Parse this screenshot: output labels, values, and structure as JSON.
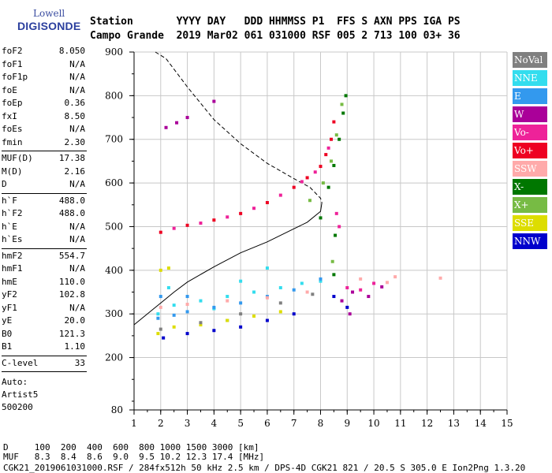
{
  "logo": {
    "line1": "Lowell",
    "line2": "DIGISONDE"
  },
  "header": {
    "row1": "Station       YYYY DAY   DDD HHMMSS P1  FFS S AXN PPS IGA PS",
    "row2": "Campo Grande  2019 Mar02 061 031000 RSF 005 2 713 100 03+ 36"
  },
  "params": {
    "group1": [
      {
        "name": "foF2",
        "value": "8.050"
      },
      {
        "name": "foF1",
        "value": "N/A"
      },
      {
        "name": "foF1p",
        "value": "N/A"
      },
      {
        "name": "foE",
        "value": "N/A"
      },
      {
        "name": "foEp",
        "value": "0.36"
      },
      {
        "name": "fxI",
        "value": "8.50"
      },
      {
        "name": "foEs",
        "value": "N/A"
      },
      {
        "name": "fmin",
        "value": "2.30"
      }
    ],
    "group2": [
      {
        "name": "MUF(D)",
        "value": "17.38"
      },
      {
        "name": "M(D)",
        "value": "2.16"
      },
      {
        "name": "D",
        "value": "N/A"
      }
    ],
    "group3": [
      {
        "name": "h`F",
        "value": "488.0"
      },
      {
        "name": "h`F2",
        "value": "488.0"
      },
      {
        "name": "h`E",
        "value": "N/A"
      },
      {
        "name": "h`Es",
        "value": "N/A"
      }
    ],
    "group4": [
      {
        "name": "hmF2",
        "value": "554.7"
      },
      {
        "name": "hmF1",
        "value": "N/A"
      },
      {
        "name": "hmE",
        "value": "110.0"
      },
      {
        "name": "yF2",
        "value": "102.8"
      },
      {
        "name": "yF1",
        "value": "N/A"
      },
      {
        "name": "yE",
        "value": "20.0"
      },
      {
        "name": "B0",
        "value": "121.3"
      },
      {
        "name": "B1",
        "value": "1.10"
      }
    ],
    "clevel": {
      "name": "C-level",
      "value": "33"
    },
    "auto": [
      "Auto:",
      "Artist5",
      "500200"
    ]
  },
  "legend": [
    {
      "label": "NoVal",
      "color": "#808080"
    },
    {
      "label": "NNE",
      "color": "#33ddee"
    },
    {
      "label": "E",
      "color": "#3399ee"
    },
    {
      "label": "W",
      "color": "#aa0099"
    },
    {
      "label": "Vo-",
      "color": "#ee2299"
    },
    {
      "label": "Vo+",
      "color": "#ee0022"
    },
    {
      "label": "SSW",
      "color": "#ffaaaa"
    },
    {
      "label": "X-",
      "color": "#007700"
    },
    {
      "label": "X+",
      "color": "#77bb44"
    },
    {
      "label": "SSE",
      "color": "#dddd00"
    },
    {
      "label": "NNW",
      "color": "#0000cc"
    }
  ],
  "footer": {
    "line1": "D     100  200  400  600  800 1000 1500 3000 [km]",
    "line2": "MUF   8.3  8.4  8.6  9.0  9.5 10.2 12.3 17.4 [MHz]",
    "line3": "CGK21_2019061031000.RSF / 284fx512h 50 kHz 2.5 km / DPS-4D CGK21 821 / 20.5 S 305.0 E Ion2Png 1.3.20"
  },
  "chart_data": {
    "type": "scatter",
    "title": "",
    "xlabel": "",
    "ylabel": "",
    "xlim": [
      1,
      15
    ],
    "ylim": [
      80,
      900
    ],
    "x_ticks": [
      1,
      2,
      3,
      4,
      5,
      6,
      7,
      8,
      9,
      10,
      11,
      12,
      13,
      14,
      15
    ],
    "y_ticks": [
      80,
      200,
      300,
      400,
      500,
      600,
      700,
      800,
      900
    ],
    "grid": true,
    "series": [
      {
        "name": "X-",
        "color": "#007700",
        "points": [
          [
            8.0,
            520
          ],
          [
            8.3,
            590
          ],
          [
            8.5,
            640
          ],
          [
            8.7,
            700
          ],
          [
            8.85,
            760
          ],
          [
            8.95,
            800
          ],
          [
            8.5,
            390
          ],
          [
            8.55,
            480
          ]
        ]
      },
      {
        "name": "X+",
        "color": "#77bb44",
        "points": [
          [
            7.6,
            560
          ],
          [
            8.1,
            600
          ],
          [
            8.4,
            650
          ],
          [
            8.6,
            710
          ],
          [
            8.8,
            780
          ],
          [
            8.45,
            420
          ]
        ]
      },
      {
        "name": "Vo+",
        "color": "#ee0022",
        "points": [
          [
            2.0,
            487
          ],
          [
            3.0,
            503
          ],
          [
            4.0,
            515
          ],
          [
            5.0,
            530
          ],
          [
            6.0,
            555
          ],
          [
            7.0,
            590
          ],
          [
            7.5,
            612
          ],
          [
            8.0,
            638
          ],
          [
            8.2,
            665
          ],
          [
            8.4,
            700
          ],
          [
            8.5,
            740
          ]
        ]
      },
      {
        "name": "Vo-",
        "color": "#ee2299",
        "points": [
          [
            2.5,
            496
          ],
          [
            3.5,
            508
          ],
          [
            4.5,
            522
          ],
          [
            5.5,
            542
          ],
          [
            6.5,
            572
          ],
          [
            7.3,
            603
          ],
          [
            7.8,
            625
          ],
          [
            8.3,
            680
          ],
          [
            8.6,
            530
          ],
          [
            8.7,
            500
          ],
          [
            9.0,
            360
          ],
          [
            9.5,
            355
          ],
          [
            10.0,
            370
          ]
        ]
      },
      {
        "name": "W",
        "color": "#aa0099",
        "points": [
          [
            2.2,
            727
          ],
          [
            2.6,
            738
          ],
          [
            3.0,
            750
          ],
          [
            4.0,
            787
          ],
          [
            8.8,
            330
          ],
          [
            9.2,
            350
          ],
          [
            9.8,
            340
          ],
          [
            10.3,
            362
          ],
          [
            9.1,
            300
          ]
        ]
      },
      {
        "name": "NNE",
        "color": "#33ddee",
        "points": [
          [
            1.9,
            300
          ],
          [
            2.5,
            320
          ],
          [
            3.5,
            330
          ],
          [
            4.5,
            340
          ],
          [
            5.5,
            350
          ],
          [
            6.5,
            360
          ],
          [
            7.3,
            370
          ],
          [
            8.0,
            375
          ],
          [
            2.3,
            360
          ],
          [
            4.0,
            312
          ],
          [
            5.0,
            375
          ],
          [
            6.0,
            405
          ]
        ]
      },
      {
        "name": "E",
        "color": "#3399ee",
        "points": [
          [
            1.9,
            290
          ],
          [
            2.5,
            297
          ],
          [
            3.0,
            305
          ],
          [
            4.0,
            315
          ],
          [
            5.0,
            325
          ],
          [
            6.0,
            340
          ],
          [
            7.0,
            355
          ],
          [
            8.0,
            380
          ],
          [
            2.0,
            340
          ],
          [
            3.0,
            340
          ],
          [
            4.5,
            285
          ]
        ]
      },
      {
        "name": "SSW",
        "color": "#ffaaaa",
        "points": [
          [
            2.0,
            315
          ],
          [
            3.0,
            322
          ],
          [
            4.5,
            330
          ],
          [
            6.0,
            337
          ],
          [
            7.5,
            350
          ],
          [
            9.5,
            380
          ],
          [
            10.5,
            372
          ],
          [
            10.8,
            385
          ],
          [
            12.5,
            382
          ]
        ]
      },
      {
        "name": "SSE",
        "color": "#dddd00",
        "points": [
          [
            1.9,
            255
          ],
          [
            2.5,
            270
          ],
          [
            3.5,
            275
          ],
          [
            4.5,
            285
          ],
          [
            5.5,
            295
          ],
          [
            6.5,
            305
          ],
          [
            2.0,
            400
          ],
          [
            2.3,
            405
          ]
        ]
      },
      {
        "name": "NNW",
        "color": "#0000cc",
        "points": [
          [
            2.1,
            245
          ],
          [
            3.0,
            255
          ],
          [
            4.0,
            262
          ],
          [
            5.0,
            270
          ],
          [
            6.0,
            285
          ],
          [
            7.0,
            300
          ],
          [
            8.5,
            340
          ],
          [
            9.0,
            315
          ]
        ]
      },
      {
        "name": "NoVal",
        "color": "#808080",
        "points": [
          [
            2.0,
            265
          ],
          [
            3.5,
            280
          ],
          [
            5.0,
            300
          ],
          [
            6.5,
            325
          ],
          [
            7.7,
            345
          ]
        ]
      }
    ],
    "profile_solid": [
      [
        1.0,
        275
      ],
      [
        1.6,
        305
      ],
      [
        2.0,
        325
      ],
      [
        2.5,
        350
      ],
      [
        3.0,
        373
      ],
      [
        4.0,
        408
      ],
      [
        5.0,
        440
      ],
      [
        6.0,
        465
      ],
      [
        7.0,
        495
      ],
      [
        7.5,
        510
      ],
      [
        8.0,
        535
      ],
      [
        8.05,
        555
      ]
    ],
    "profile_dashed": [
      [
        1.8,
        900
      ],
      [
        2.2,
        885
      ],
      [
        3.0,
        820
      ],
      [
        4.0,
        745
      ],
      [
        5.0,
        690
      ],
      [
        6.0,
        645
      ],
      [
        7.0,
        610
      ],
      [
        7.6,
        590
      ],
      [
        8.0,
        565
      ],
      [
        8.05,
        555
      ]
    ]
  }
}
